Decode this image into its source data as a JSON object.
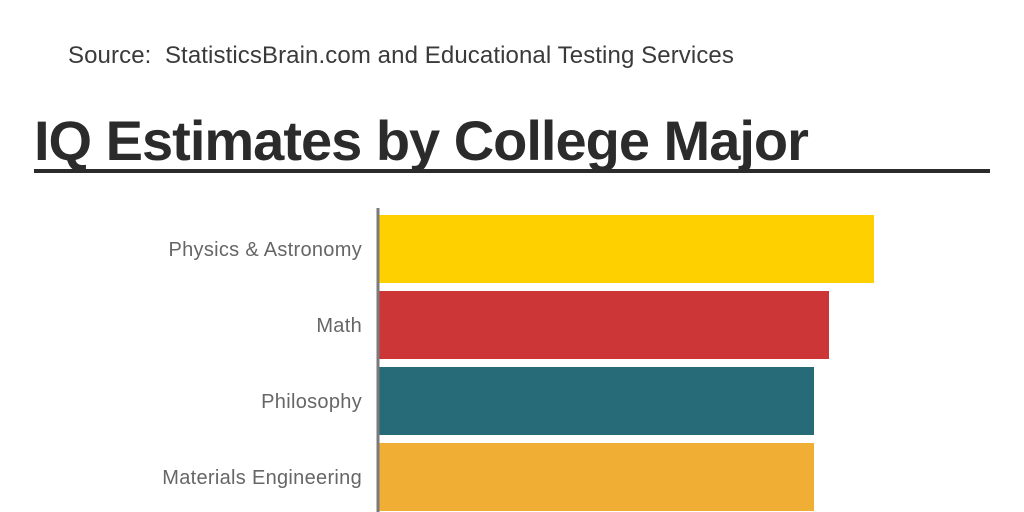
{
  "header": {
    "source": "Source:  StatisticsBrain.com and Educational Testing Services"
  },
  "chart_data": {
    "type": "bar",
    "orientation": "horizontal",
    "title": "IQ Estimates by College Major",
    "categories": [
      "Physics & Astronomy",
      "Math",
      "Philosophy",
      "Materials Engineering"
    ],
    "values": [
      133,
      130,
      129,
      129
    ],
    "xlim": [
      100,
      133
    ],
    "colors": [
      "#FFD000",
      "#CD3636",
      "#276B78",
      "#F0AE35"
    ],
    "grid": false,
    "legend": "none"
  }
}
